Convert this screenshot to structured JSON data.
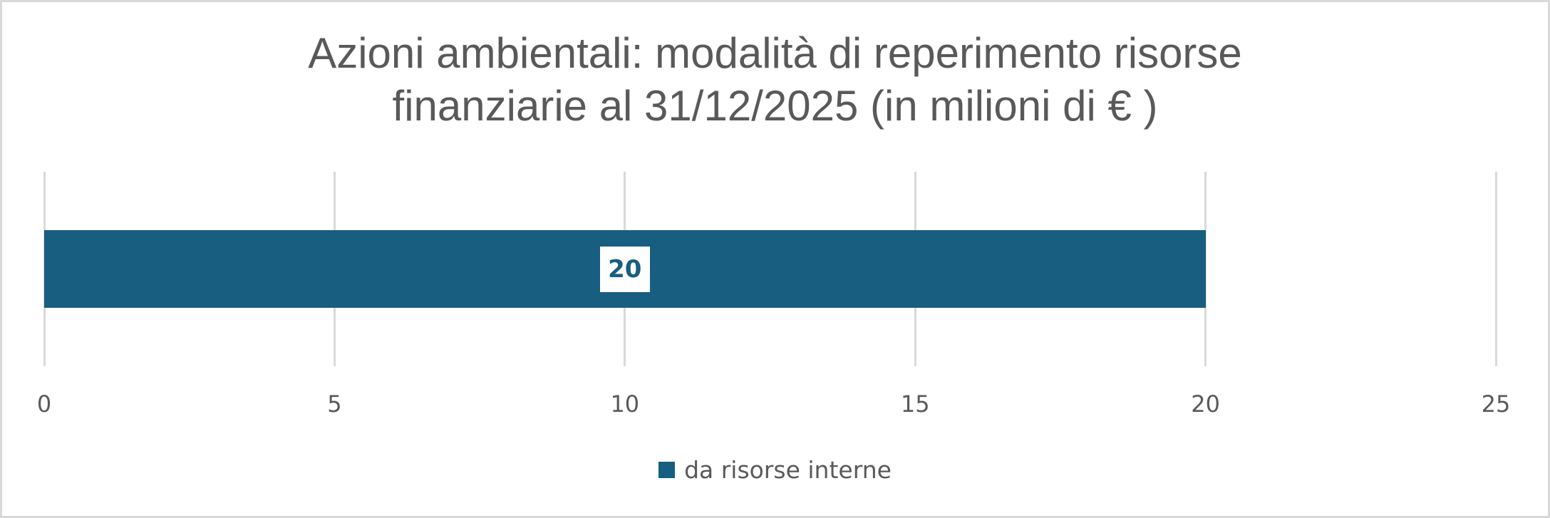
{
  "chart_data": {
    "type": "bar",
    "orientation": "horizontal",
    "title": "Azioni ambientali: modalità di reperimento risorse finanziarie al 31/12/2025 (in milioni di € )",
    "title_lines": [
      "Azioni ambientali: modalità di reperimento risorse",
      "finanziarie al 31/12/2025 (in milioni di € )"
    ],
    "categories": [
      ""
    ],
    "series": [
      {
        "name": "da risorse interne",
        "values": [
          20
        ],
        "color": "#175e80"
      }
    ],
    "data_labels": [
      "20"
    ],
    "xlabel": "",
    "ylabel": "",
    "xlim": [
      0,
      25
    ],
    "x_ticks": [
      0,
      5,
      10,
      15,
      20,
      25
    ],
    "x_tick_labels": [
      "0",
      "5",
      "10",
      "15",
      "20",
      "25"
    ],
    "grid": {
      "vertical": true,
      "horizontal": false,
      "color": "#d9d9d9"
    },
    "legend": {
      "position": "bottom",
      "entries": [
        "da risorse interne"
      ]
    }
  },
  "colors": {
    "bar": "#175e80",
    "text": "#595959",
    "grid": "#d9d9d9",
    "border": "#d9d9d9"
  }
}
